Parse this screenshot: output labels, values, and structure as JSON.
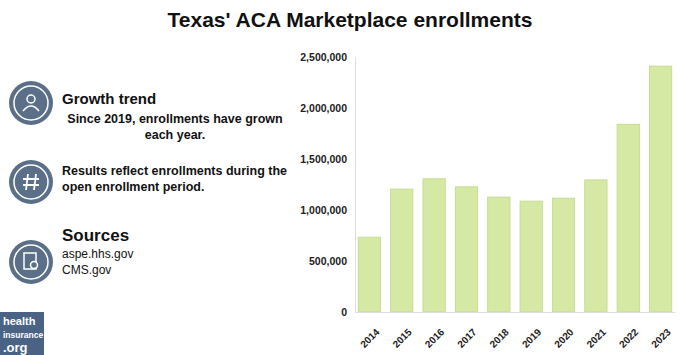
{
  "chart_data": {
    "type": "bar",
    "title": "Texas' ACA Marketplace enrollments",
    "categories": [
      "2014",
      "2015",
      "2016",
      "2017",
      "2018",
      "2019",
      "2020",
      "2021",
      "2022",
      "2023"
    ],
    "values": [
      733757,
      1205174,
      1306208,
      1227290,
      1126838,
      1087240,
      1116293,
      1295430,
      1840947,
      2410810
    ],
    "color": "#d5e8a4",
    "ylim": [
      0,
      2500000
    ],
    "yticks": [
      {
        "value": 0,
        "label": "0"
      },
      {
        "value": 500000,
        "label": "500,000"
      },
      {
        "value": 1000000,
        "label": "1,000,000"
      },
      {
        "value": 1500000,
        "label": "1,500,000"
      },
      {
        "value": 2000000,
        "label": "2,000,000"
      },
      {
        "value": 2500000,
        "label": "2,500,000"
      }
    ],
    "grid": false,
    "annotations": [
      {
        "heading": "Growth trend",
        "text": [
          "Since 2019, enrollments have grown",
          "each year."
        ]
      },
      {
        "text": [
          "Results reflect enrollments during the",
          "open enrollment period."
        ]
      },
      {
        "heading": "Sources",
        "text": [
          "aspe.hhs.gov",
          "CMS.gov"
        ]
      }
    ],
    "logo": [
      "health",
      "insurance",
      ".org"
    ]
  }
}
